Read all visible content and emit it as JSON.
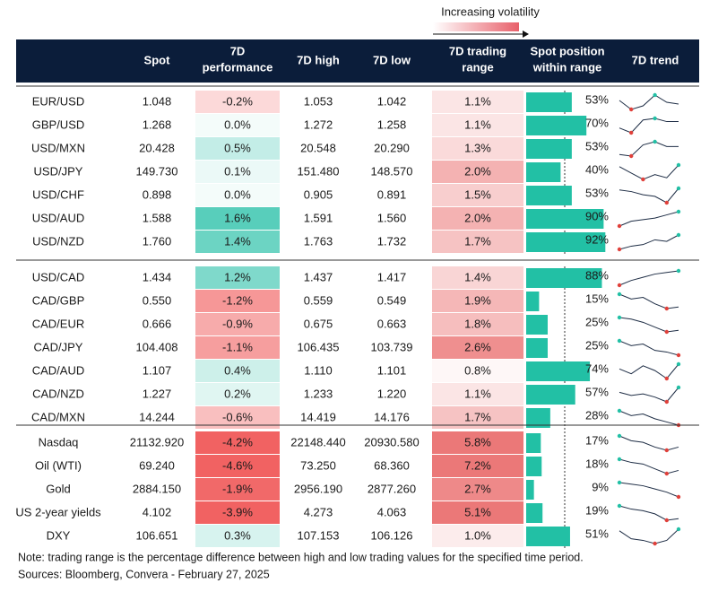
{
  "legend": {
    "volatility": "Increasing volatility"
  },
  "header": [
    [
      "Spot"
    ],
    [
      "7D",
      "performance"
    ],
    [
      "7D high"
    ],
    [
      "7D low"
    ],
    [
      "7D trading",
      "range"
    ],
    [
      "Spot position",
      "within range"
    ],
    [
      "7D trend"
    ]
  ],
  "groups": [
    [
      [
        "EUR/USD",
        "1.048",
        "-0.2%",
        "1.053",
        "1.042",
        "1.1%",
        "53%",
        [
          6,
          1,
          3,
          9,
          5,
          4
        ]
      ],
      [
        "GBP/USD",
        "1.268",
        "0.0%",
        "1.272",
        "1.258",
        "1.1%",
        "70%",
        [
          3,
          0,
          8,
          9,
          7,
          7
        ]
      ],
      [
        "USD/MXN",
        "20.428",
        "0.5%",
        "20.548",
        "20.290",
        "1.3%",
        "53%",
        [
          1,
          0,
          7,
          9,
          6,
          6
        ]
      ],
      [
        "USD/JPY",
        "149.730",
        "0.1%",
        "151.480",
        "148.570",
        "2.0%",
        "40%",
        [
          8,
          4,
          0,
          3,
          1,
          9
        ]
      ],
      [
        "USD/CHF",
        "0.898",
        "0.0%",
        "0.905",
        "0.891",
        "1.5%",
        "53%",
        [
          8,
          7,
          5,
          4,
          0,
          9
        ]
      ],
      [
        "USD/AUD",
        "1.588",
        "1.6%",
        "1.591",
        "1.560",
        "2.0%",
        "90%",
        [
          0,
          3,
          4,
          5,
          7,
          9
        ]
      ],
      [
        "USD/NZD",
        "1.760",
        "1.4%",
        "1.763",
        "1.732",
        "1.7%",
        "92%",
        [
          0,
          2,
          3,
          6,
          5,
          9
        ]
      ]
    ],
    [
      [
        "USD/CAD",
        "1.434",
        "1.2%",
        "1.437",
        "1.417",
        "1.4%",
        "88%",
        [
          0,
          3,
          5,
          7,
          8,
          9
        ]
      ],
      [
        "CAD/GBP",
        "0.550",
        "-1.2%",
        "0.559",
        "0.549",
        "1.9%",
        "15%",
        [
          9,
          6,
          7,
          3,
          0,
          1
        ]
      ],
      [
        "CAD/EUR",
        "0.666",
        "-0.9%",
        "0.675",
        "0.663",
        "1.8%",
        "25%",
        [
          9,
          8,
          6,
          3,
          0,
          1
        ]
      ],
      [
        "CAD/JPY",
        "104.408",
        "-1.1%",
        "106.435",
        "103.739",
        "2.6%",
        "25%",
        [
          9,
          6,
          7,
          3,
          2,
          0
        ]
      ],
      [
        "CAD/AUD",
        "1.107",
        "0.4%",
        "1.110",
        "1.101",
        "0.8%",
        "74%",
        [
          6,
          3,
          8,
          5,
          0,
          9
        ]
      ],
      [
        "CAD/NZD",
        "1.227",
        "0.2%",
        "1.233",
        "1.220",
        "1.1%",
        "57%",
        [
          6,
          4,
          5,
          3,
          0,
          9
        ]
      ],
      [
        "CAD/MXN",
        "14.244",
        "-0.6%",
        "14.419",
        "14.176",
        "1.7%",
        "28%",
        [
          9,
          6,
          7,
          4,
          2,
          0
        ]
      ]
    ],
    [
      [
        "Nasdaq",
        "21132.920",
        "-4.2%",
        "22148.440",
        "20930.580",
        "5.8%",
        "17%",
        [
          9,
          6,
          5,
          2,
          0,
          2
        ]
      ],
      [
        "Oil (WTI)",
        "69.240",
        "-4.6%",
        "73.250",
        "68.360",
        "7.2%",
        "18%",
        [
          9,
          7,
          6,
          3,
          0,
          2
        ]
      ],
      [
        "Gold",
        "2884.150",
        "-1.9%",
        "2956.190",
        "2877.260",
        "2.7%",
        "9%",
        [
          9,
          8,
          7,
          5,
          3,
          0
        ]
      ],
      [
        "US 2-year yields",
        "4.102",
        "-3.9%",
        "4.273",
        "4.063",
        "5.1%",
        "19%",
        [
          9,
          7,
          6,
          4,
          0,
          1
        ]
      ],
      [
        "DXY",
        "106.651",
        "0.3%",
        "107.153",
        "106.126",
        "1.0%",
        "51%",
        [
          8,
          3,
          2,
          0,
          2,
          9
        ]
      ]
    ]
  ],
  "footer": {
    "note": "Note: trading range is the percentage difference between high and low trading values for the specified time period.",
    "sources": "Sources: Bloomberg, Convera - February 27, 2025"
  }
}
